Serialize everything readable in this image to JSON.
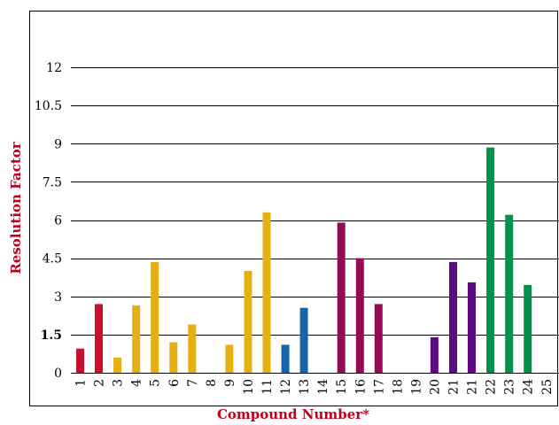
{
  "chart_data": {
    "type": "bar",
    "xlabel": "Compound Number*",
    "ylabel": "Resolution Factor",
    "axis_title_color": "#c0001a",
    "ylim": [
      0,
      12
    ],
    "y_ticks": [
      "0",
      "1.5",
      "3",
      "4.5",
      "6",
      "7.5",
      "9",
      "10.5",
      "12"
    ],
    "y_tick_values": [
      0,
      1.5,
      3,
      4.5,
      6,
      7.5,
      9,
      10.5,
      12
    ],
    "highlight_tick": "1.5",
    "grid": "horizontal",
    "categories": [
      "1",
      "2",
      "3",
      "4",
      "5",
      "6",
      "7",
      "8",
      "9",
      "10",
      "11",
      "12",
      "13",
      "14",
      "15",
      "16",
      "17",
      "18",
      "19",
      "20",
      "21",
      "21",
      "22",
      "23",
      "24",
      "25"
    ],
    "values": [
      0.95,
      2.7,
      0.6,
      2.65,
      4.35,
      1.2,
      1.9,
      null,
      1.1,
      4.0,
      6.3,
      1.1,
      2.55,
      null,
      5.9,
      4.5,
      2.7,
      null,
      null,
      1.4,
      4.35,
      3.55,
      8.85,
      6.2,
      3.45,
      null
    ],
    "colors": [
      "#c8102e",
      "#c8102e",
      "#e5b013",
      "#e5b013",
      "#e5b013",
      "#e5b013",
      "#e5b013",
      "#e5b013",
      "#e5b013",
      "#e5b013",
      "#e5b013",
      "#1565a8",
      "#1565a8",
      "#1565a8",
      "#950a55",
      "#950a55",
      "#950a55",
      "#950a55",
      "#950a55",
      "#5c0b82",
      "#5c0b82",
      "#5c0b82",
      "#00914a",
      "#00914a",
      "#00914a",
      "#00914a"
    ]
  }
}
